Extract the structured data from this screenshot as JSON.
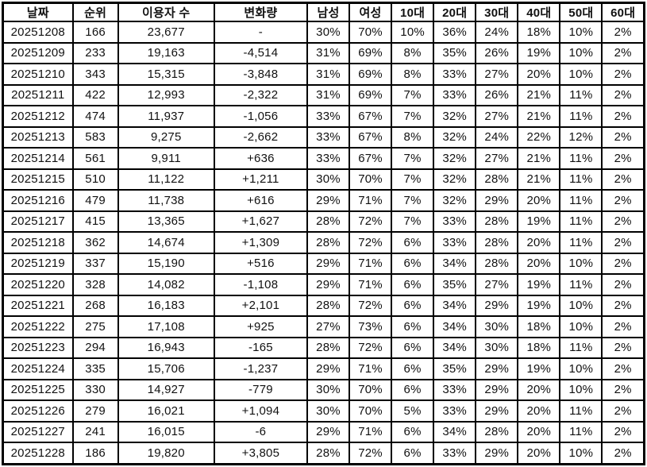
{
  "colors": {
    "negative_blue": "#0a0af5",
    "positive_red": "#f81d1d",
    "text": "#111111",
    "border": "#000000",
    "background": "#ffffff"
  },
  "chart_data": {
    "type": "table",
    "columns": [
      "날짜",
      "순위",
      "이용자 수",
      "변화량",
      "남성",
      "여성",
      "10대",
      "20대",
      "30대",
      "40대",
      "50대",
      "60대"
    ],
    "rows": [
      {
        "date": "20251208",
        "date_color": "default",
        "rank": "166",
        "users": "23,677",
        "change": "-",
        "change_color": "default",
        "male": "30%",
        "female": "70%",
        "age10": "10%",
        "age20": "36%",
        "age30": "24%",
        "age40": "18%",
        "age50": "10%",
        "age60": "2%"
      },
      {
        "date": "20251209",
        "date_color": "default",
        "rank": "233",
        "users": "19,163",
        "change": "-4,514",
        "change_color": "blue",
        "male": "31%",
        "female": "69%",
        "age10": "8%",
        "age20": "35%",
        "age30": "26%",
        "age40": "19%",
        "age50": "10%",
        "age60": "2%"
      },
      {
        "date": "20251210",
        "date_color": "default",
        "rank": "343",
        "users": "15,315",
        "change": "-3,848",
        "change_color": "blue",
        "male": "31%",
        "female": "69%",
        "age10": "8%",
        "age20": "33%",
        "age30": "27%",
        "age40": "20%",
        "age50": "10%",
        "age60": "2%"
      },
      {
        "date": "20251211",
        "date_color": "default",
        "rank": "422",
        "users": "12,993",
        "change": "-2,322",
        "change_color": "blue",
        "male": "31%",
        "female": "69%",
        "age10": "7%",
        "age20": "33%",
        "age30": "26%",
        "age40": "21%",
        "age50": "11%",
        "age60": "2%"
      },
      {
        "date": "20251212",
        "date_color": "default",
        "rank": "474",
        "users": "11,937",
        "change": "-1,056",
        "change_color": "blue",
        "male": "33%",
        "female": "67%",
        "age10": "7%",
        "age20": "32%",
        "age30": "27%",
        "age40": "21%",
        "age50": "11%",
        "age60": "2%"
      },
      {
        "date": "20251213",
        "date_color": "blue",
        "rank": "583",
        "users": "9,275",
        "change": "-2,662",
        "change_color": "blue",
        "male": "33%",
        "female": "67%",
        "age10": "8%",
        "age20": "32%",
        "age30": "24%",
        "age40": "22%",
        "age50": "12%",
        "age60": "2%"
      },
      {
        "date": "20251214",
        "date_color": "red",
        "rank": "561",
        "users": "9,911",
        "change": "+636",
        "change_color": "red",
        "male": "33%",
        "female": "67%",
        "age10": "7%",
        "age20": "32%",
        "age30": "27%",
        "age40": "21%",
        "age50": "11%",
        "age60": "2%"
      },
      {
        "date": "20251215",
        "date_color": "default",
        "rank": "510",
        "users": "11,122",
        "change": "+1,211",
        "change_color": "red",
        "male": "30%",
        "female": "70%",
        "age10": "7%",
        "age20": "32%",
        "age30": "28%",
        "age40": "21%",
        "age50": "11%",
        "age60": "2%"
      },
      {
        "date": "20251216",
        "date_color": "default",
        "rank": "479",
        "users": "11,738",
        "change": "+616",
        "change_color": "red",
        "male": "29%",
        "female": "71%",
        "age10": "7%",
        "age20": "32%",
        "age30": "29%",
        "age40": "20%",
        "age50": "11%",
        "age60": "2%"
      },
      {
        "date": "20251217",
        "date_color": "default",
        "rank": "415",
        "users": "13,365",
        "change": "+1,627",
        "change_color": "red",
        "male": "28%",
        "female": "72%",
        "age10": "7%",
        "age20": "33%",
        "age30": "28%",
        "age40": "19%",
        "age50": "11%",
        "age60": "2%"
      },
      {
        "date": "20251218",
        "date_color": "default",
        "rank": "362",
        "users": "14,674",
        "change": "+1,309",
        "change_color": "red",
        "male": "28%",
        "female": "72%",
        "age10": "6%",
        "age20": "33%",
        "age30": "28%",
        "age40": "20%",
        "age50": "11%",
        "age60": "2%"
      },
      {
        "date": "20251219",
        "date_color": "default",
        "rank": "337",
        "users": "15,190",
        "change": "+516",
        "change_color": "red",
        "male": "29%",
        "female": "71%",
        "age10": "6%",
        "age20": "34%",
        "age30": "28%",
        "age40": "20%",
        "age50": "10%",
        "age60": "2%"
      },
      {
        "date": "20251220",
        "date_color": "blue",
        "rank": "328",
        "users": "14,082",
        "change": "-1,108",
        "change_color": "blue",
        "male": "29%",
        "female": "71%",
        "age10": "6%",
        "age20": "35%",
        "age30": "27%",
        "age40": "19%",
        "age50": "11%",
        "age60": "2%"
      },
      {
        "date": "20251221",
        "date_color": "red",
        "rank": "268",
        "users": "16,183",
        "change": "+2,101",
        "change_color": "red",
        "male": "28%",
        "female": "72%",
        "age10": "6%",
        "age20": "34%",
        "age30": "29%",
        "age40": "19%",
        "age50": "10%",
        "age60": "2%"
      },
      {
        "date": "20251222",
        "date_color": "default",
        "rank": "275",
        "users": "17,108",
        "change": "+925",
        "change_color": "red",
        "male": "27%",
        "female": "73%",
        "age10": "6%",
        "age20": "34%",
        "age30": "30%",
        "age40": "18%",
        "age50": "10%",
        "age60": "2%"
      },
      {
        "date": "20251223",
        "date_color": "default",
        "rank": "294",
        "users": "16,943",
        "change": "-165",
        "change_color": "blue",
        "male": "28%",
        "female": "72%",
        "age10": "6%",
        "age20": "34%",
        "age30": "30%",
        "age40": "18%",
        "age50": "11%",
        "age60": "2%"
      },
      {
        "date": "20251224",
        "date_color": "default",
        "rank": "335",
        "users": "15,706",
        "change": "-1,237",
        "change_color": "blue",
        "male": "29%",
        "female": "71%",
        "age10": "6%",
        "age20": "35%",
        "age30": "29%",
        "age40": "19%",
        "age50": "10%",
        "age60": "2%"
      },
      {
        "date": "20251225",
        "date_color": "default",
        "rank": "330",
        "users": "14,927",
        "change": "-779",
        "change_color": "blue",
        "male": "30%",
        "female": "70%",
        "age10": "6%",
        "age20": "33%",
        "age30": "29%",
        "age40": "20%",
        "age50": "10%",
        "age60": "2%"
      },
      {
        "date": "20251226",
        "date_color": "default",
        "rank": "279",
        "users": "16,021",
        "change": "+1,094",
        "change_color": "red",
        "male": "30%",
        "female": "70%",
        "age10": "5%",
        "age20": "33%",
        "age30": "29%",
        "age40": "20%",
        "age50": "11%",
        "age60": "2%"
      },
      {
        "date": "20251227",
        "date_color": "blue",
        "rank": "241",
        "users": "16,015",
        "change": "-6",
        "change_color": "blue",
        "male": "29%",
        "female": "71%",
        "age10": "6%",
        "age20": "34%",
        "age30": "28%",
        "age40": "20%",
        "age50": "11%",
        "age60": "2%"
      },
      {
        "date": "20251228",
        "date_color": "red",
        "rank": "186",
        "users": "19,820",
        "change": "+3,805",
        "change_color": "red",
        "male": "28%",
        "female": "72%",
        "age10": "6%",
        "age20": "33%",
        "age30": "29%",
        "age40": "20%",
        "age50": "10%",
        "age60": "2%"
      }
    ]
  }
}
